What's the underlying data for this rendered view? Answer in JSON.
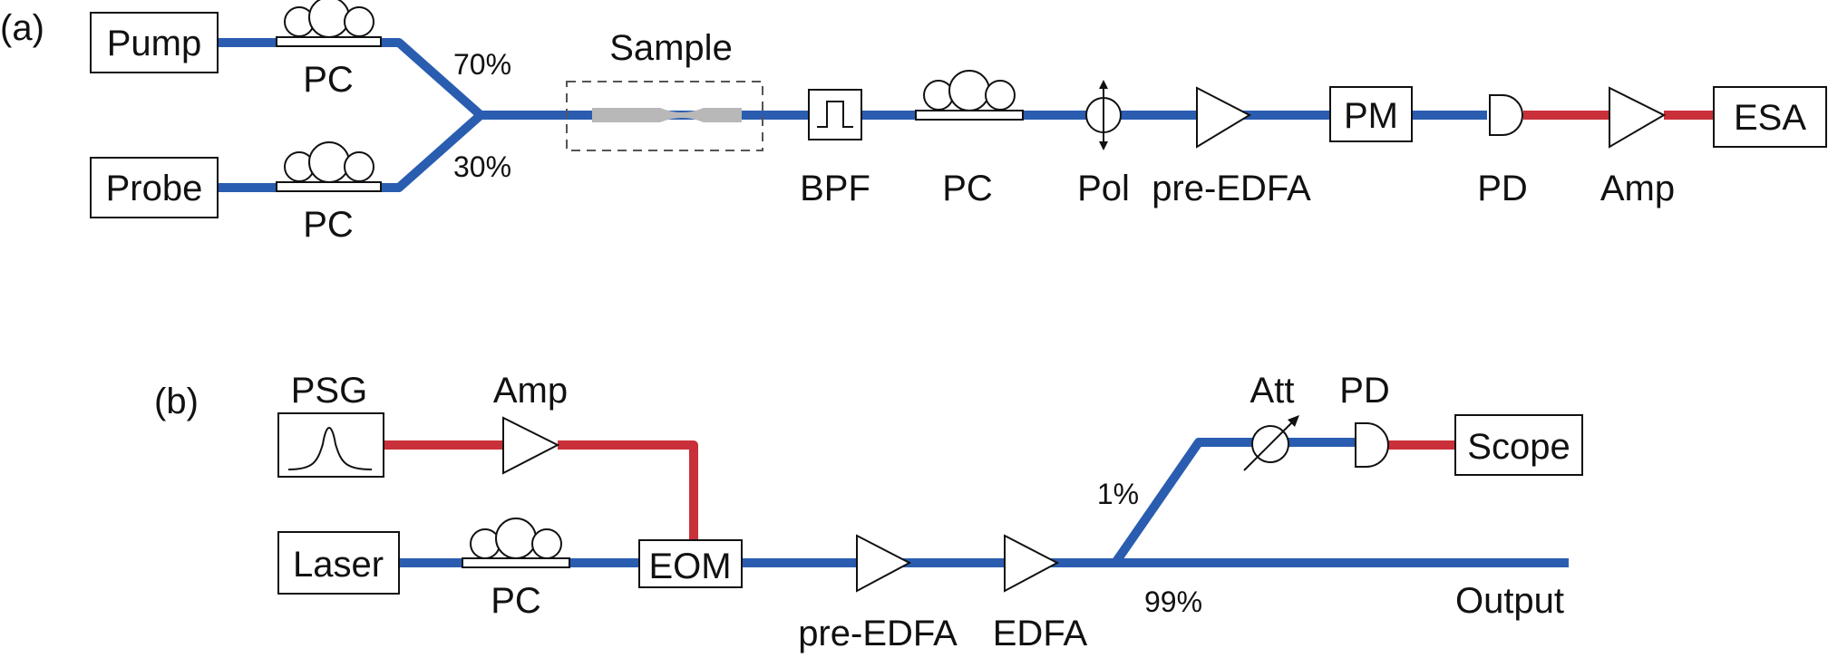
{
  "colors": {
    "optical_fiber": "#2a5db0",
    "electrical": "#c9303a",
    "outline": "#111111",
    "sample_taper": "#b8b8b8"
  },
  "panel_a": {
    "tag": "(a)",
    "pump": "Pump",
    "probe": "Probe",
    "pc_top": "PC",
    "pc_bottom": "PC",
    "split_high": "70%",
    "split_low": "30%",
    "sample": "Sample",
    "bpf": "BPF",
    "pc_main": "PC",
    "pol": "Pol",
    "pre_edfa": "pre-EDFA",
    "pm": "PM",
    "pd": "PD",
    "amp": "Amp",
    "esa": "ESA"
  },
  "panel_b": {
    "tag": "(b)",
    "psg": "PSG",
    "amp": "Amp",
    "laser": "Laser",
    "pc": "PC",
    "eom": "EOM",
    "pre_edfa": "pre-EDFA",
    "edfa": "EDFA",
    "tap_low": "1%",
    "tap_high": "99%",
    "att": "Att",
    "pd": "PD",
    "scope": "Scope",
    "output": "Output"
  },
  "icons": {
    "polarization_controller": "pc-loops-icon",
    "bandpass_filter": "bandpass-filter-icon",
    "polarizer": "polarizer-icon",
    "amplifier": "amplifier-triangle-icon",
    "photodiode": "photodiode-icon",
    "attenuator": "variable-attenuator-icon",
    "pulse": "pulse-icon"
  }
}
